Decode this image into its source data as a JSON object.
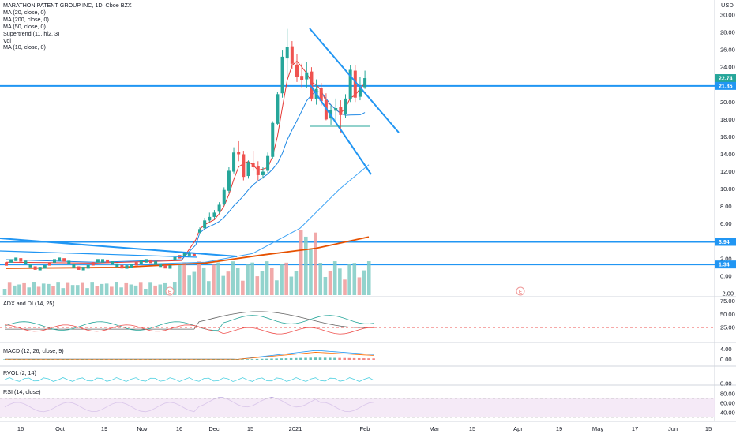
{
  "chart_data": {
    "type": "candlestick",
    "title": "MARATHON PATENT GROUP INC, 1D, Cboe BZX",
    "currency": "USD",
    "indicators": [
      "MA (20, close, 0)",
      "MA (200, close, 0)",
      "MA (50, close, 0)",
      "Supertrend (11, hl2, 3)",
      "Vol",
      "MA (10, close, 0)"
    ],
    "y_ticks": [
      "30.00",
      "28.00",
      "26.00",
      "24.00",
      "22.00",
      "20.00",
      "18.00",
      "16.00",
      "14.00",
      "12.00",
      "10.00",
      "8.00",
      "6.00",
      "4.00",
      "2.00",
      "0.00",
      "-2.00"
    ],
    "ylim": [
      -2,
      31
    ],
    "x_ticks": [
      "16",
      "Oct",
      "19",
      "Nov",
      "16",
      "Dec",
      "15",
      "2021",
      "Feb",
      "Mar",
      "15",
      "Apr",
      "19",
      "May",
      "17",
      "Jun",
      "15"
    ],
    "price_tags": [
      {
        "label": "22.74",
        "value": 22.74,
        "color": "#26a69a"
      },
      {
        "label": "21.85",
        "value": 21.85,
        "color": "#2196f3"
      },
      {
        "label": "3.94",
        "value": 3.94,
        "color": "#2196f3"
      },
      {
        "label": "1.34",
        "value": 1.34,
        "color": "#2196f3"
      }
    ],
    "horizontal_levels": [
      21.85,
      3.94,
      1.34
    ],
    "earnings_markers": [
      "E",
      "E"
    ],
    "candles_recent": {
      "dates": [
        "Dec 10",
        "Dec 11",
        "Dec 14",
        "Dec 15",
        "Dec 16",
        "Dec 17",
        "Dec 18",
        "Dec 21",
        "Dec 22",
        "Dec 23",
        "Dec 24",
        "Dec 28",
        "Dec 29",
        "Dec 30",
        "Dec 31",
        "Jan 4",
        "Jan 5",
        "Jan 6",
        "Jan 7",
        "Jan 8",
        "Jan 11",
        "Jan 12",
        "Jan 13",
        "Jan 14",
        "Jan 15",
        "Jan 19",
        "Jan 20",
        "Jan 21",
        "Jan 22",
        "Jan 25",
        "Jan 26",
        "Jan 27",
        "Jan 28",
        "Jan 29",
        "Feb 1"
      ],
      "open": [
        5.0,
        5.5,
        6.4,
        6.8,
        7.4,
        8.3,
        9.8,
        12.0,
        14.3,
        14.0,
        11.5,
        13.0,
        12.6,
        11.6,
        12.1,
        13.7,
        17.5,
        21.0,
        25.0,
        26.4,
        24.3,
        23.0,
        22.6,
        23.5,
        20.3,
        21.6,
        20.2,
        18.1,
        19.0,
        19.4,
        18.6,
        20.3,
        23.6,
        20.6,
        21.7
      ],
      "high": [
        5.6,
        6.7,
        7.3,
        7.6,
        8.5,
        10.2,
        12.5,
        14.8,
        15.5,
        14.4,
        13.3,
        14.4,
        13.2,
        12.5,
        14.2,
        17.8,
        21.2,
        26.0,
        28.4,
        27.0,
        25.5,
        24.4,
        24.6,
        24.0,
        22.6,
        22.2,
        21.0,
        19.6,
        20.4,
        20.2,
        20.9,
        24.2,
        24.2,
        22.9,
        23.6
      ],
      "low": [
        4.9,
        5.4,
        6.2,
        6.6,
        7.2,
        8.1,
        9.5,
        11.8,
        13.2,
        11.0,
        11.2,
        12.1,
        11.0,
        11.2,
        11.8,
        13.5,
        17.3,
        20.5,
        22.8,
        23.8,
        22.3,
        21.7,
        21.6,
        20.1,
        19.7,
        19.6,
        17.9,
        17.4,
        17.9,
        16.5,
        18.2,
        20.0,
        20.0,
        20.2,
        21.5
      ],
      "close": [
        5.4,
        6.4,
        6.8,
        7.3,
        8.2,
        9.9,
        12.1,
        14.2,
        14.0,
        11.4,
        13.1,
        12.5,
        11.6,
        12.0,
        13.8,
        17.6,
        20.9,
        25.2,
        26.3,
        24.4,
        22.9,
        22.5,
        23.4,
        20.4,
        21.5,
        20.1,
        18.0,
        19.1,
        19.3,
        18.5,
        20.4,
        23.7,
        20.5,
        21.6,
        22.74
      ]
    },
    "volume_baseline": "Vol",
    "sub_panes": [
      {
        "name": "ADX and DI (14, 25)",
        "ticks": [
          "75.00",
          "50.00",
          "25.00"
        ],
        "ylim": [
          0,
          80
        ],
        "reference": 25
      },
      {
        "name": "MACD (12, 26, close, 9)",
        "ticks": [
          "4.00",
          "0.00"
        ],
        "ylim": [
          -2,
          6
        ]
      },
      {
        "name": "RVOL (2, 14)",
        "ticks": [
          "0.00"
        ],
        "ylim": [
          0,
          4
        ]
      },
      {
        "name": "RSI (14, close)",
        "ticks": [
          "80.00",
          "60.00",
          "40.00"
        ],
        "ylim": [
          25,
          95
        ],
        "band": [
          30,
          70
        ]
      }
    ]
  }
}
